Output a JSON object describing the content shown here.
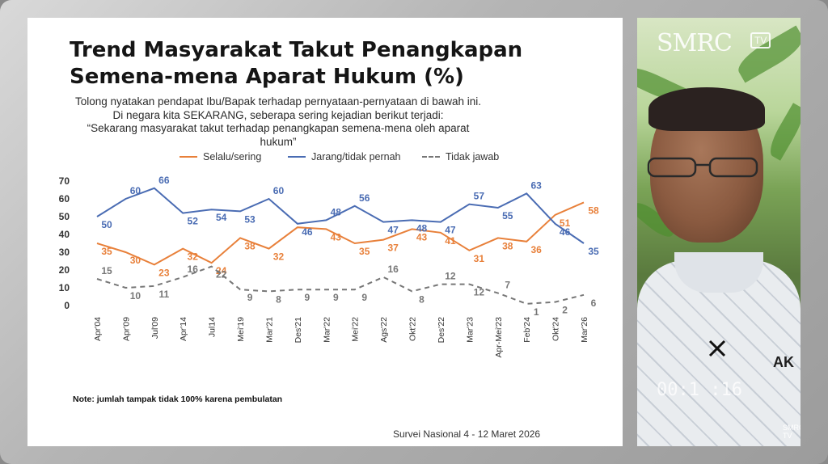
{
  "slide": {
    "title_line1": "Trend Masyarakat Takut Penangkapan",
    "title_line2": "Semena-mena Aparat Hukum (%)",
    "question_lines": [
      "Tolong nyatakan pendapat Ibu/Bapak terhadap pernyataan-pernyataan di bawah ini.",
      "Di negara kita SEKARANG, seberapa sering kejadian berikut terjadi:",
      "“Sekarang masyarakat takut terhadap penangkapan semena-mena oleh aparat",
      "hukum”"
    ],
    "note": "Note: jumlah tampak tidak 100% karena pembulatan",
    "source": "Survei Nasional 4 - 12 Maret 2026"
  },
  "video": {
    "logo": "SMRC",
    "logo_tv": "TV",
    "timecode": "00:1 :16",
    "shirt_text": "AK",
    "small_logo": "SMRC TV"
  },
  "colors": {
    "selalu": "#E8803A",
    "jarang": "#4A6CB3",
    "tidak": "#777777"
  },
  "chart_data": {
    "type": "line",
    "title": "Trend Masyarakat Takut Penangkapan Semena-mena Aparat Hukum (%)",
    "categories": [
      "Apr'04",
      "Apr'09",
      "Jul'09",
      "Apr'14",
      "Jul14",
      "Mei'19",
      "Mar'21",
      "Des'21",
      "Mar'22",
      "Mei'22",
      "Ags'22",
      "Okt'22",
      "Des'22",
      "Mar'23",
      "Apr-Mei'23",
      "Feb'24",
      "Okt'24",
      "Mar'26"
    ],
    "ylim": [
      0,
      70
    ],
    "yticks": [
      0,
      10,
      20,
      30,
      40,
      50,
      60,
      70
    ],
    "grid": false,
    "legend": "top",
    "series": [
      {
        "name": "Selalu/sering",
        "style": "solid",
        "color": "#E8803A",
        "values": [
          35,
          30,
          23,
          32,
          24,
          38,
          32,
          44,
          43,
          35,
          37,
          43,
          41,
          31,
          38,
          36,
          51,
          58
        ],
        "labels": [
          "35",
          "30",
          "23",
          "32",
          "24",
          "38",
          "32",
          "",
          "43",
          "35",
          "37",
          "43",
          "41",
          "31",
          "38",
          "36",
          "51",
          "58"
        ]
      },
      {
        "name": "Jarang/tidak pernah",
        "style": "solid",
        "color": "#4A6CB3",
        "values": [
          50,
          60,
          66,
          52,
          54,
          53,
          60,
          46,
          48,
          56,
          47,
          48,
          47,
          57,
          55,
          63,
          46,
          35
        ],
        "labels": [
          "50",
          "60",
          "66",
          "52",
          "54",
          "53",
          "60",
          "46",
          "48",
          "56",
          "47",
          "48",
          "47",
          "57",
          "55",
          "63",
          "46",
          "35"
        ]
      },
      {
        "name": "Tidak jawab",
        "style": "dashed",
        "color": "#777777",
        "values": [
          15,
          10,
          11,
          16,
          22,
          9,
          8,
          9,
          9,
          9,
          16,
          8,
          12,
          12,
          7,
          1,
          2,
          6
        ],
        "labels": [
          "15",
          "10",
          "11",
          "16",
          "22",
          "9",
          "8",
          "9",
          "9",
          "9",
          "16",
          "8",
          "12",
          "12",
          "7",
          "1",
          "2",
          "6"
        ]
      }
    ]
  }
}
